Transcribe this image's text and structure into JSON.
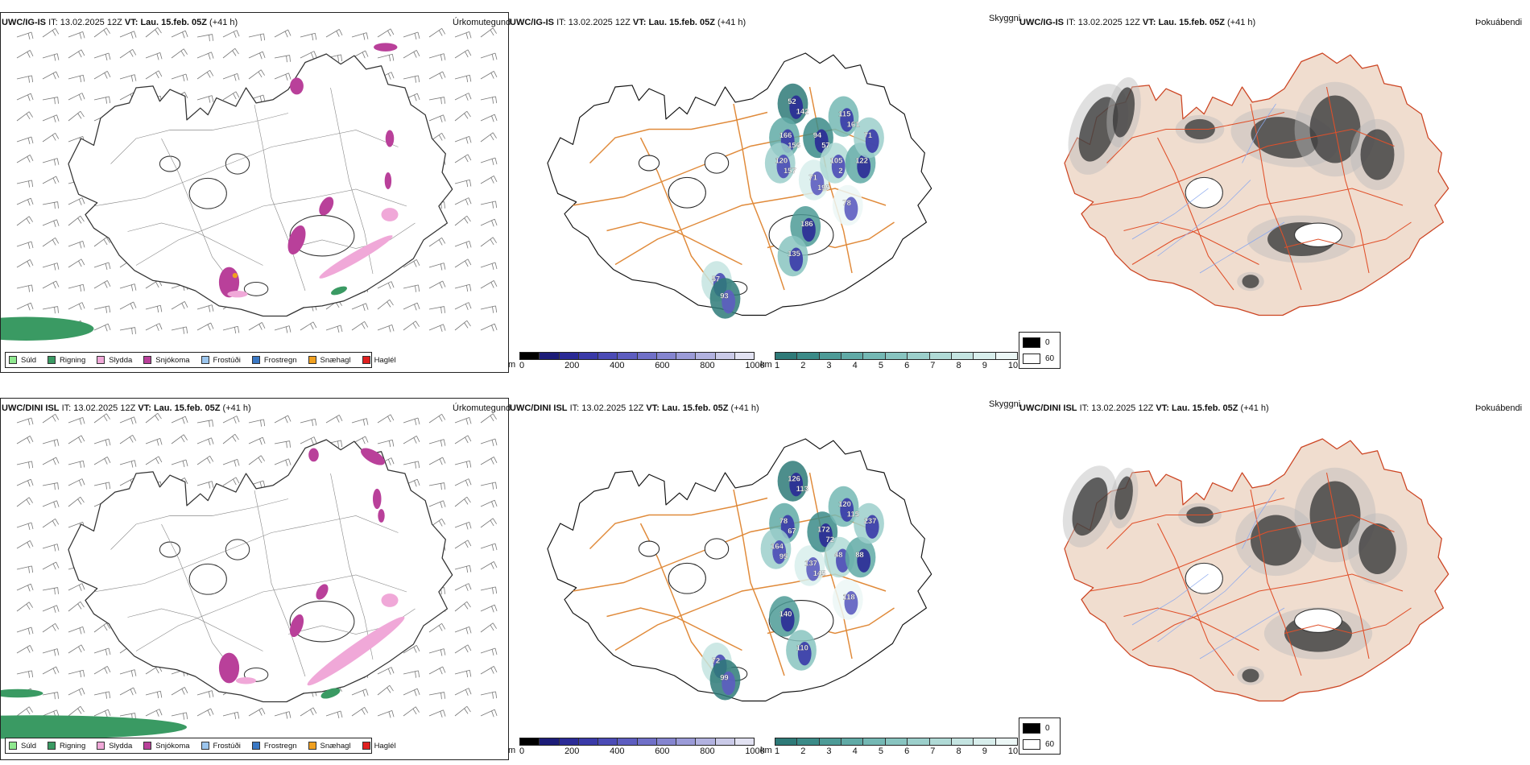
{
  "rows": [
    {
      "model": "UWC/IG-IS",
      "it_label": "IT:",
      "it_value": "13.02.2025 12Z",
      "vt_label": "VT:",
      "vt_value": "Lau. 15.feb. 05Z",
      "lead": "(+41 h)",
      "panels": {
        "precip_type": "Úrkomutegund",
        "visibility": "Skyggni",
        "fog": "Þokuábendi"
      },
      "visibility_labels": [
        "52",
        "166",
        "120",
        "71",
        "94",
        "115",
        "105",
        "78",
        "186",
        "135",
        "57",
        "93",
        "122",
        "71",
        "142",
        "156",
        "157",
        "195",
        "57",
        "161",
        "2"
      ]
    },
    {
      "model": "UWC/DINI ISL",
      "it_label": "IT:",
      "it_value": "13.02.2025 12Z",
      "vt_label": "VT:",
      "vt_value": "Lau. 15.feb. 05Z",
      "lead": "(+41 h)",
      "panels": {
        "precip_type": "Úrkomutegund",
        "visibility": "Skyggni",
        "fog": "Þokuábendi"
      },
      "visibility_labels": [
        "126",
        "78",
        "164",
        "137",
        "172",
        "120",
        "48",
        "118",
        "140",
        "110",
        "72",
        "99",
        "88",
        "237",
        "113",
        "67",
        "95",
        "145",
        "72",
        "115"
      ]
    }
  ],
  "precip_legend": [
    {
      "label": "Súld",
      "color": "#8fe88f"
    },
    {
      "label": "Rigning",
      "color": "#3a9a63"
    },
    {
      "label": "Slydda",
      "color": "#f0a8d8"
    },
    {
      "label": "Snjókoma",
      "color": "#b9409a"
    },
    {
      "label": "Frostúði",
      "color": "#9cc6ee"
    },
    {
      "label": "Frostregn",
      "color": "#3a78c4"
    },
    {
      "label": "Snæhagl",
      "color": "#f0a020"
    },
    {
      "label": "Haglél",
      "color": "#e02020"
    }
  ],
  "height_bar": {
    "unit": "m",
    "ticks": [
      "0",
      "200",
      "400",
      "600",
      "800",
      "1000"
    ],
    "colors": [
      "#000000",
      "#1c1c78",
      "#2a2a96",
      "#3a3aa8",
      "#4b4bb6",
      "#5d5dc0",
      "#7070c8",
      "#8585d0",
      "#9b9bd8",
      "#b2b2e0",
      "#cacae8",
      "#e2e2f2"
    ]
  },
  "vis_bar": {
    "unit": "km",
    "ticks": [
      "1",
      "2",
      "3",
      "4",
      "5",
      "6",
      "7",
      "8",
      "9",
      "10"
    ],
    "colors": [
      "#2e7a78",
      "#3b8b88",
      "#4d9b97",
      "#60aaa6",
      "#74b8b4",
      "#88c4c0",
      "#9ccfcb",
      "#b0dad6",
      "#c4e4e1",
      "#d8eeec",
      "#ecf7f6"
    ]
  },
  "fog_legend": [
    {
      "label": "0",
      "color": "#000000"
    },
    {
      "label": "60",
      "color": "#ffffff"
    }
  ],
  "colors": {
    "coast": "#333333",
    "roads": "#e08a3a",
    "fog_land": "#f0ddcf",
    "fog_roads": "#e0502a",
    "rivers": "#8aa8ee",
    "wind_barbs": "#777777"
  }
}
